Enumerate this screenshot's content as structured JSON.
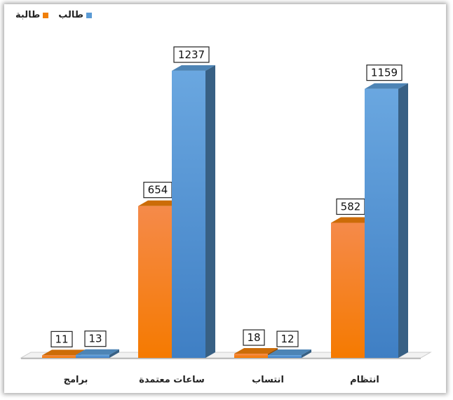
{
  "chart_data": {
    "type": "bar",
    "title": "",
    "xlabel": "",
    "ylabel": "",
    "categories": [
      "انتظام",
      "انتساب",
      "ساعات معتمدة",
      "برامج"
    ],
    "series": [
      {
        "name": "طالب",
        "color": "#5b9bd5",
        "values": [
          1159,
          12,
          1237,
          13
        ]
      },
      {
        "name": "طالبة",
        "color": "#f07f09",
        "values": [
          582,
          18,
          654,
          11
        ]
      }
    ],
    "ylim": [
      0,
      1300
    ],
    "grid": false,
    "legend_position": "top-left"
  }
}
